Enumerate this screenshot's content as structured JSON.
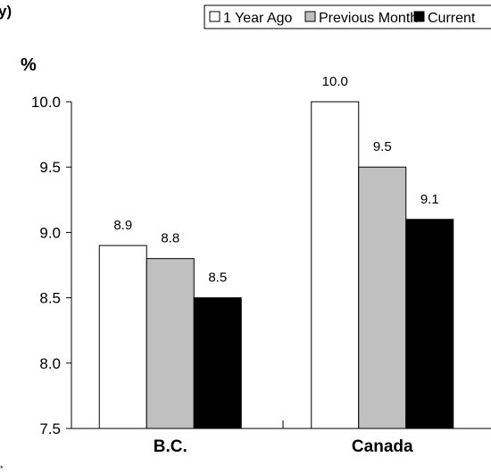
{
  "chart_data": {
    "type": "bar",
    "title": "",
    "ylabel": "%",
    "categories": [
      "B.C.",
      "Canada"
    ],
    "series": [
      {
        "name": "1 Year Ago",
        "values": [
          8.9,
          10.0
        ],
        "color": "#ffffff"
      },
      {
        "name": "Previous Month",
        "values": [
          8.8,
          9.5
        ],
        "color": "#c0c0c0"
      },
      {
        "name": "Current",
        "values": [
          8.5,
          9.1
        ],
        "color": "#000000"
      }
    ],
    "ylim": [
      7.5,
      10.0
    ],
    "yticks": [
      "7.5",
      "8.0",
      "8.5",
      "9.0",
      "9.5",
      "10.0"
    ],
    "data_labels": [
      [
        "8.9",
        "10.0"
      ],
      [
        "8.8",
        "9.5"
      ],
      [
        "8.5",
        "9.1"
      ]
    ],
    "grid": false,
    "legend": "top"
  }
}
